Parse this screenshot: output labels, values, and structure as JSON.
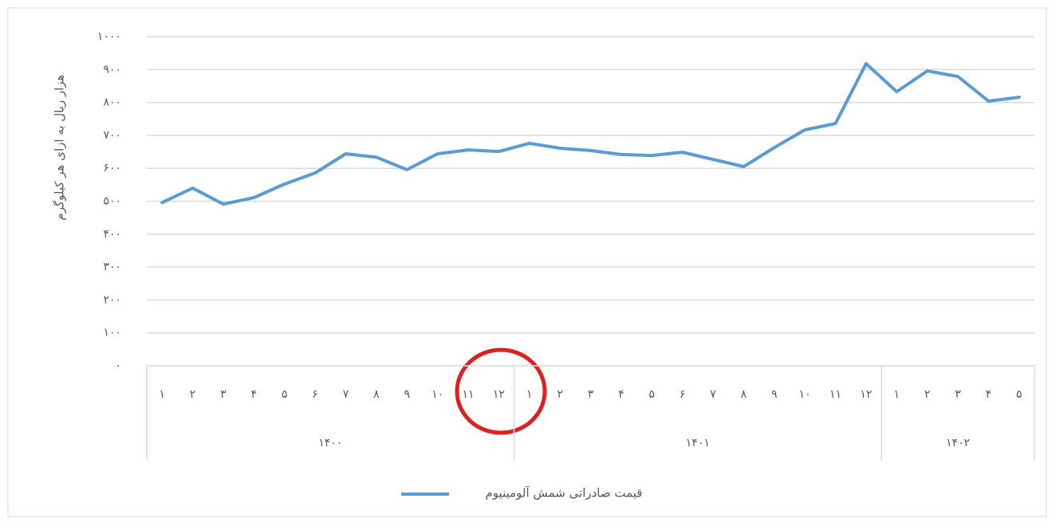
{
  "chart_data": {
    "type": "line",
    "y_axis_label": "هزار ریال به ازای هر کیلوگرم",
    "category_groups": [
      {
        "label": "۱۴۰۰",
        "categories": [
          "۱",
          "۲",
          "۳",
          "۴",
          "۵",
          "۶",
          "۷",
          "۸",
          "۹",
          "۱۰",
          "۱۱",
          "۱۲"
        ]
      },
      {
        "label": "۱۴۰۱",
        "categories": [
          "۱",
          "۲",
          "۳",
          "۴",
          "۵",
          "۶",
          "۷",
          "۸",
          "۹",
          "۱۰",
          "۱۱",
          "۱۲"
        ]
      },
      {
        "label": "۱۴۰۲",
        "categories": [
          "۱",
          "۲",
          "۳",
          "۴",
          "۵"
        ]
      }
    ],
    "series": [
      {
        "name": "قیمت صادراتی شمش آلومینیوم",
        "color": "#5b9bd5",
        "values": [
          496,
          540,
          491,
          511,
          552,
          586,
          644,
          634,
          596,
          644,
          656,
          651,
          676,
          661,
          654,
          642,
          639,
          649,
          627,
          605,
          663,
          717,
          736,
          918,
          833,
          896,
          879,
          804,
          816
        ]
      }
    ],
    "ylim": [
      0,
      1000
    ],
    "yticks": [
      {
        "value": 0,
        "label": "۰"
      },
      {
        "value": 100,
        "label": "۱۰۰"
      },
      {
        "value": 200,
        "label": "۲۰۰"
      },
      {
        "value": 300,
        "label": "۳۰۰"
      },
      {
        "value": 400,
        "label": "۴۰۰"
      },
      {
        "value": 500,
        "label": "۵۰۰"
      },
      {
        "value": 600,
        "label": "۶۰۰"
      },
      {
        "value": 700,
        "label": "۷۰۰"
      },
      {
        "value": 800,
        "label": "۸۰۰"
      },
      {
        "value": 900,
        "label": "۹۰۰"
      },
      {
        "value": 1000,
        "label": "۱۰۰۰"
      }
    ],
    "grid": true
  }
}
